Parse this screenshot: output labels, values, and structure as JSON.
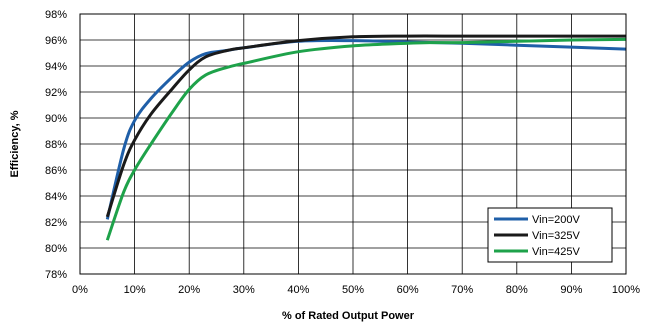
{
  "chart_data": {
    "type": "line",
    "title": "",
    "xlabel": "% of Rated Output Power",
    "ylabel": "Efficiency, %",
    "xlim": [
      0,
      100
    ],
    "ylim": [
      78,
      98
    ],
    "x_ticks": [
      "0%",
      "10%",
      "20%",
      "30%",
      "40%",
      "50%",
      "60%",
      "70%",
      "80%",
      "90%",
      "100%"
    ],
    "y_ticks": [
      "78%",
      "80%",
      "82%",
      "84%",
      "86%",
      "88%",
      "90%",
      "92%",
      "94%",
      "96%",
      "98%"
    ],
    "grid": true,
    "legend_position": "bottom-right",
    "series": [
      {
        "name": "Vin=200V",
        "color": "#1f5fa8",
        "points": [
          [
            5,
            82.2
          ],
          [
            8,
            87.6
          ],
          [
            10,
            89.8
          ],
          [
            13,
            91.5
          ],
          [
            17,
            93.2
          ],
          [
            20,
            94.3
          ],
          [
            23,
            94.95
          ],
          [
            27,
            95.2
          ],
          [
            30,
            95.4
          ],
          [
            40,
            95.9
          ],
          [
            50,
            95.95
          ],
          [
            60,
            95.85
          ],
          [
            70,
            95.75
          ],
          [
            80,
            95.6
          ],
          [
            90,
            95.45
          ],
          [
            100,
            95.3
          ]
        ]
      },
      {
        "name": "Vin=325V",
        "color": "#1a1a1a",
        "points": [
          [
            5,
            82.4
          ],
          [
            8,
            86.4
          ],
          [
            10,
            88.3
          ],
          [
            13,
            90.3
          ],
          [
            17,
            92.3
          ],
          [
            20,
            93.7
          ],
          [
            23,
            94.7
          ],
          [
            27,
            95.2
          ],
          [
            30,
            95.4
          ],
          [
            40,
            95.95
          ],
          [
            50,
            96.25
          ],
          [
            60,
            96.3
          ],
          [
            70,
            96.3
          ],
          [
            80,
            96.3
          ],
          [
            90,
            96.3
          ],
          [
            100,
            96.3
          ]
        ]
      },
      {
        "name": "Vin=425V",
        "color": "#1ea24a",
        "points": [
          [
            5,
            80.6
          ],
          [
            8,
            84.3
          ],
          [
            10,
            86.0
          ],
          [
            13,
            88.0
          ],
          [
            17,
            90.5
          ],
          [
            20,
            92.2
          ],
          [
            23,
            93.3
          ],
          [
            27,
            93.9
          ],
          [
            30,
            94.2
          ],
          [
            40,
            95.1
          ],
          [
            50,
            95.55
          ],
          [
            60,
            95.75
          ],
          [
            64,
            95.8
          ],
          [
            70,
            95.8
          ],
          [
            80,
            95.9
          ],
          [
            90,
            96.0
          ],
          [
            100,
            96.05
          ]
        ]
      }
    ]
  }
}
